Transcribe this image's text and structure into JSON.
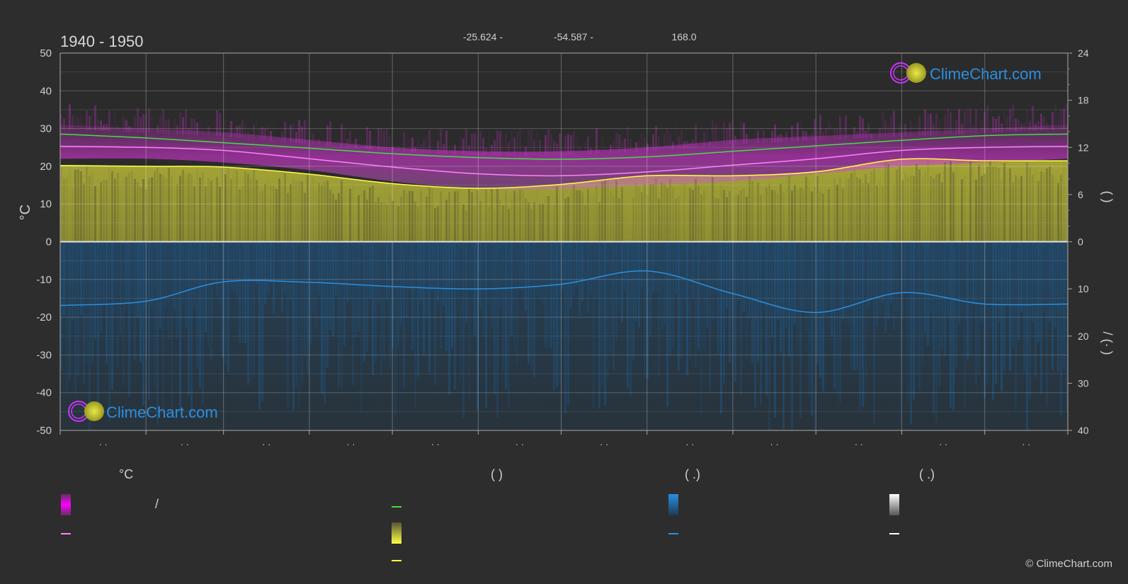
{
  "header": {
    "period": "1940 - 1950",
    "lat_text": "-25.624 -",
    "lon_text": "-54.587 -",
    "elev_text": "168.0"
  },
  "brand": {
    "text": "ClimeChart.com",
    "copyright": "© ClimeChart.com"
  },
  "axes": {
    "left_label": "°C",
    "left_ticks": [
      50,
      40,
      30,
      20,
      10,
      0,
      -10,
      -20,
      -30,
      -40,
      -50
    ],
    "right_ticks_top": [
      24,
      18,
      12,
      6,
      0
    ],
    "right_ticks_bottom": [
      0,
      10,
      20,
      30,
      40
    ],
    "right_label_top": "(   )",
    "right_label_bottom": "/   (·   )",
    "month_ticks": [
      "· ·",
      "· ·",
      "· ·",
      "· ·",
      "· ·",
      "· ·",
      "· ·",
      "· ·",
      "· ·",
      "· ·",
      "· ·",
      "· ·"
    ]
  },
  "legend": {
    "col1_header": "°C",
    "col1_slash": "/",
    "col2_header": "(          )",
    "col3_header": "(   .)",
    "col4_header": "(   .)"
  },
  "colors": {
    "background": "#2d2d2d",
    "temp_band": "#cc33cc",
    "sunshine_band": "#b9b93a",
    "precip_band": "#1e5a8c",
    "max_temp_line": "#ff80ff",
    "daylight_line": "#44dd44",
    "sunshine_line": "#ffff44",
    "precip_line": "#2a8fe0",
    "snow_line": "#ffffff",
    "brand_blue": "#2a8fe0"
  },
  "chart_data": {
    "type": "line",
    "xlabel": "",
    "ylabel": "°C",
    "ylim": [
      -50,
      50
    ],
    "y2lim_sun_hours": [
      0,
      24
    ],
    "y2lim_precip_mm": [
      0,
      40
    ],
    "x_day_of_year": [
      1,
      32,
      60,
      91,
      121,
      152,
      182,
      213,
      244,
      274,
      305,
      335,
      365
    ],
    "series": [
      {
        "key": "daylight",
        "axis": "hours",
        "values": [
          13.7,
          13.2,
          12.6,
          11.9,
          11.2,
          10.7,
          10.5,
          10.8,
          11.5,
          12.2,
          12.9,
          13.5,
          13.7
        ]
      },
      {
        "key": "max_temp",
        "axis": "temp",
        "values": [
          25.3,
          25.0,
          24.2,
          22.0,
          19.8,
          18.0,
          17.5,
          18.5,
          20.3,
          22.0,
          24.2,
          25.0,
          25.3
        ]
      },
      {
        "key": "sunshine",
        "axis": "hours",
        "values": [
          9.7,
          9.6,
          9.5,
          8.6,
          7.4,
          6.8,
          7.3,
          8.4,
          8.4,
          8.9,
          10.5,
          10.3,
          10.3
        ]
      },
      {
        "key": "precip_avg",
        "axis": "precip_mm",
        "values": [
          13.5,
          12.6,
          8.5,
          8.6,
          9.5,
          10.0,
          9.0,
          6.2,
          11.0,
          15.0,
          10.8,
          13.2,
          13.2
        ]
      }
    ],
    "temp_band_top": [
      31,
      30,
      29,
      27,
      25,
      24,
      24,
      25,
      27,
      28,
      29,
      30,
      31
    ],
    "temp_band_bottom": [
      22,
      22,
      21,
      19,
      16,
      14,
      14,
      15,
      16,
      18,
      20,
      21,
      22
    ]
  }
}
